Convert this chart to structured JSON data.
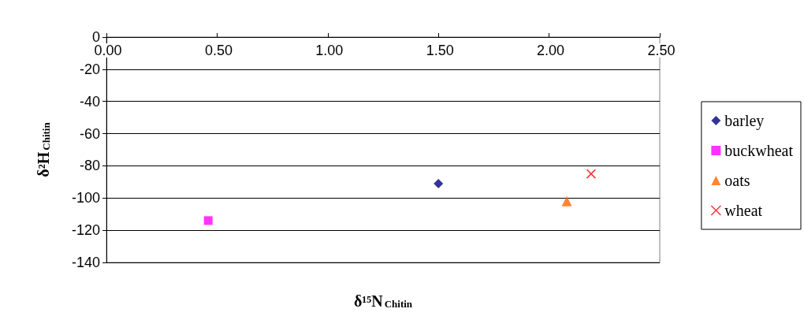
{
  "chart_data": {
    "type": "scatter",
    "xlabel": "δ¹⁵N$_{Chitin}$",
    "ylabel": "δ²H$_{Chitin}$",
    "xlim": [
      0,
      2.5
    ],
    "xticks": [
      {
        "value": 0,
        "label": "0.00"
      },
      {
        "value": 0.5,
        "label": "0.50"
      },
      {
        "value": 1,
        "label": "1.00"
      },
      {
        "value": 1.5,
        "label": "1.50"
      },
      {
        "value": 2,
        "label": "2.00"
      },
      {
        "value": 2.5,
        "label": "2.50"
      }
    ],
    "ylim": [
      -140,
      0
    ],
    "yticks": [
      -140,
      -120,
      -100,
      -80,
      -60,
      -40,
      -20,
      0
    ],
    "grid": "y",
    "legend": "right",
    "series": [
      {
        "name": "barley",
        "color": "#000080",
        "marker": "diamond",
        "x": [
          1.5
        ],
        "values": [
          -91
        ]
      },
      {
        "name": "buckwheat",
        "color": "#ff00ff",
        "marker": "square",
        "x": [
          0.46
        ],
        "values": [
          -114
        ]
      },
      {
        "name": "oats",
        "color": "#ff6600",
        "marker": "triangle",
        "x": [
          2.08
        ],
        "values": [
          -102
        ]
      },
      {
        "name": "wheat",
        "color": "#ff0000",
        "marker": "cross",
        "x": [
          2.19
        ],
        "values": [
          -85
        ]
      }
    ]
  }
}
